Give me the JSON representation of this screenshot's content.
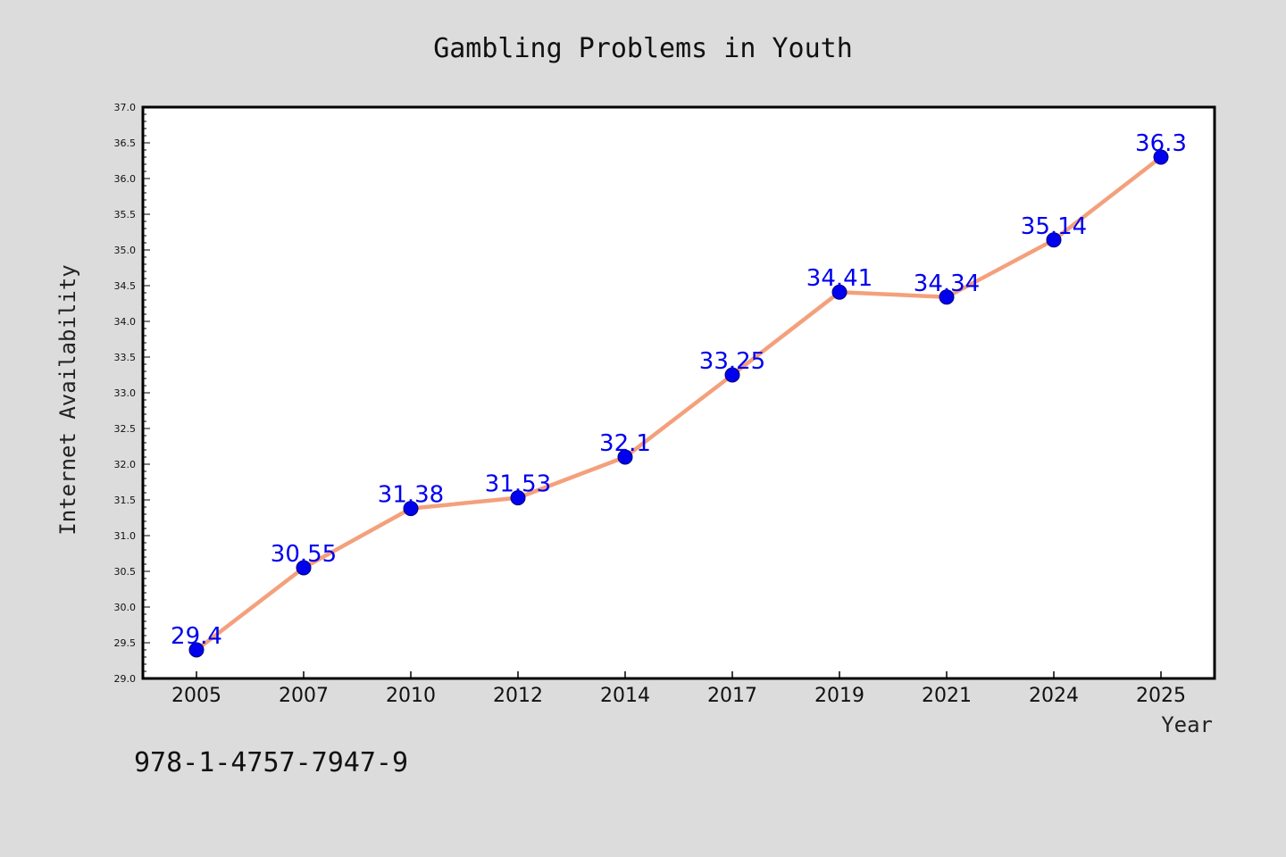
{
  "chart_data": {
    "type": "line",
    "title": "Gambling Problems in Youth",
    "xlabel": "Year",
    "ylabel": "Internet Availability",
    "categories": [
      "2005",
      "2007",
      "2010",
      "2012",
      "2014",
      "2017",
      "2019",
      "2021",
      "2024",
      "2025"
    ],
    "series": [
      {
        "values": [
          29.4,
          30.55,
          31.38,
          31.53,
          32.1,
          33.25,
          34.41,
          34.34,
          35.14,
          36.3
        ],
        "data_labels": [
          "29.4",
          "30.55",
          "31.38",
          "31.53",
          "32.1",
          "33.25",
          "34.41",
          "34.34",
          "35.14",
          "36.3"
        ]
      }
    ],
    "ylim": [
      29.0,
      37.0
    ],
    "yticks": [
      "29.0",
      "29.5",
      "30.0",
      "30.5",
      "31.0",
      "31.5",
      "32.0",
      "32.5",
      "33.0",
      "33.5",
      "34.0",
      "34.5",
      "35.0",
      "35.5",
      "36.0",
      "36.5",
      "37.0"
    ],
    "grid": false,
    "legend": "none",
    "colors": {
      "line": "#f4a07c",
      "marker": "#0000ee",
      "labels": "#0000ee",
      "background": "#dcdcdc",
      "plot_area": "#ffffff"
    }
  },
  "footer": {
    "isbn": "978-1-4757-7947-9"
  }
}
